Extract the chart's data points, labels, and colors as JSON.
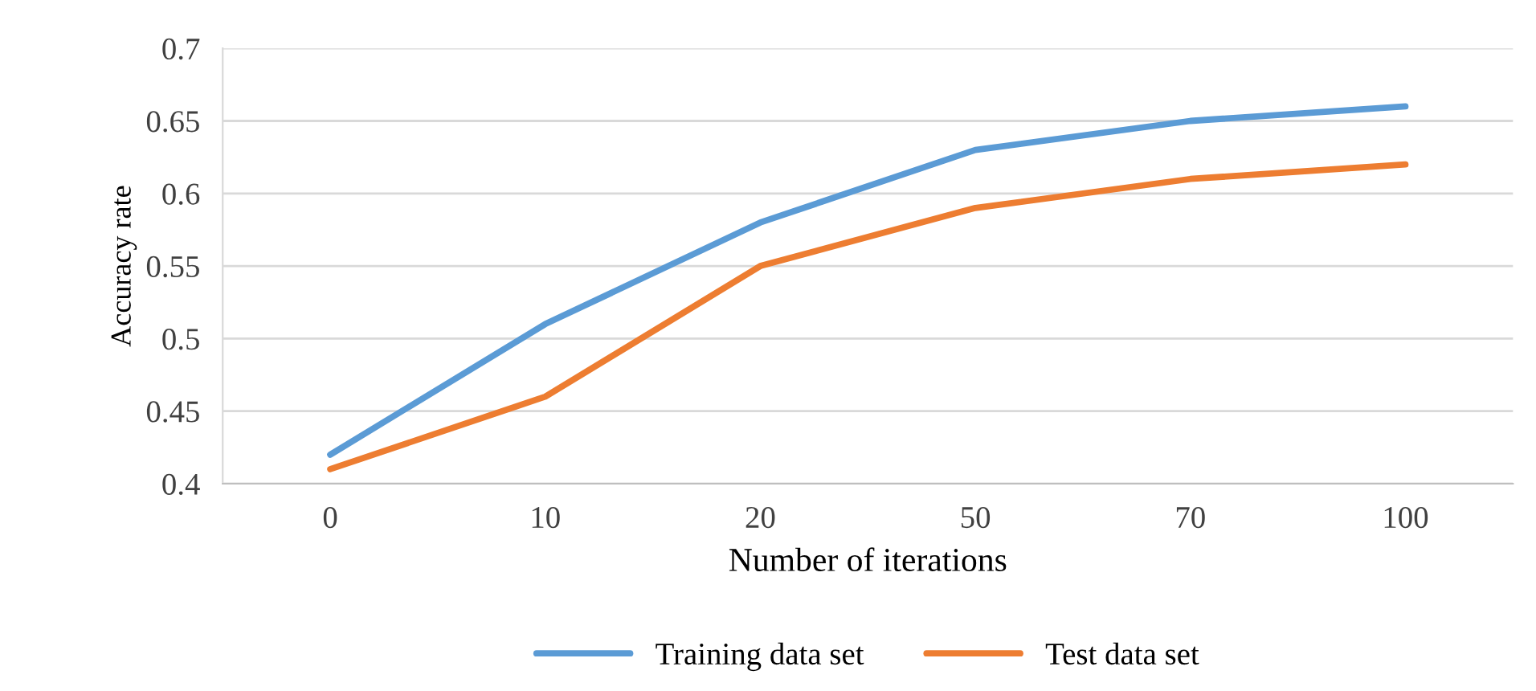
{
  "chart_data": {
    "type": "line",
    "xlabel": "Number of iterations",
    "ylabel": "Accuracy rate",
    "categories": [
      "0",
      "10",
      "20",
      "50",
      "70",
      "100"
    ],
    "series": [
      {
        "name": "Training data set",
        "color": "#5b9bd5",
        "values": [
          0.42,
          0.51,
          0.58,
          0.63,
          0.65,
          0.66
        ]
      },
      {
        "name": "Test data set",
        "color": "#ed7d31",
        "values": [
          0.41,
          0.46,
          0.55,
          0.59,
          0.61,
          0.62
        ]
      }
    ],
    "ylim": [
      0.4,
      0.7
    ],
    "yticks": [
      0.4,
      0.45,
      0.5,
      0.55,
      0.6,
      0.65,
      0.7
    ],
    "grid": "y",
    "legend": "bottom",
    "marker": "none",
    "line_style": "solid"
  }
}
